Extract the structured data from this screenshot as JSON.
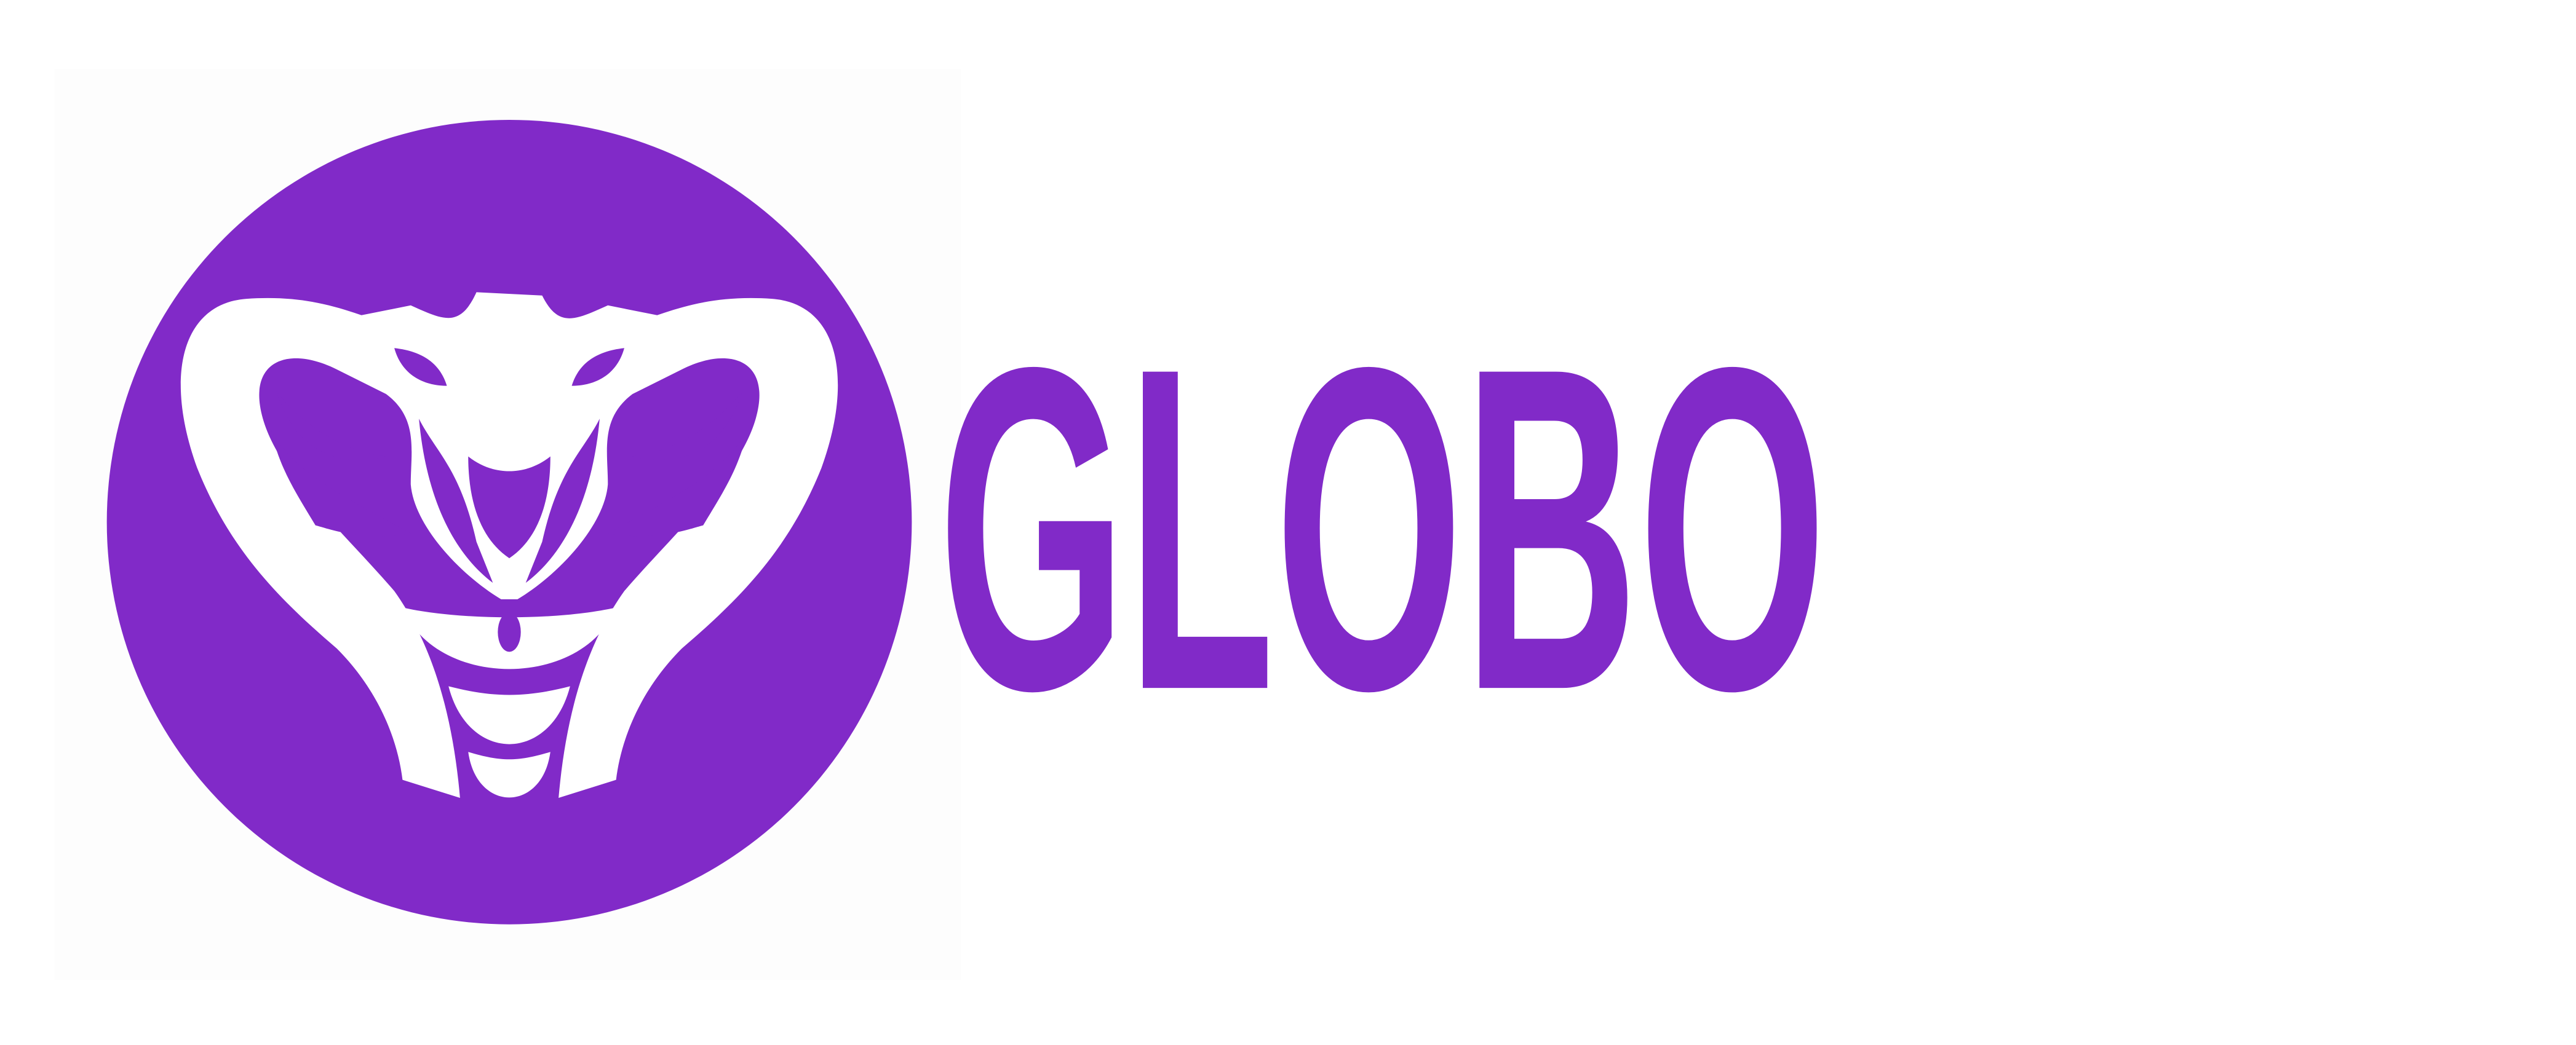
{
  "logo": {
    "text": "GLOBO"
  }
}
